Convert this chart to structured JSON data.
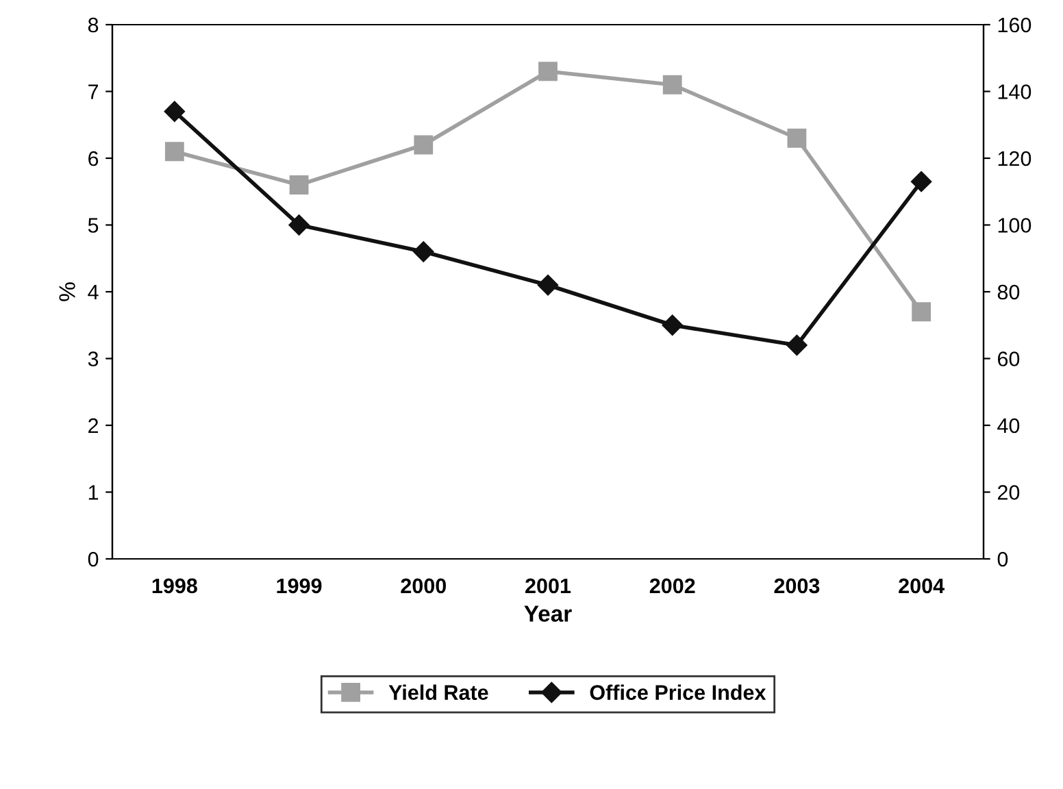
{
  "chart_data": {
    "type": "line",
    "xlabel": "Year",
    "ylabel": "%",
    "categories": [
      "1998",
      "1999",
      "2000",
      "2001",
      "2002",
      "2003",
      "2004"
    ],
    "series": [
      {
        "name": "Yield Rate",
        "color": "#a0a0a0",
        "marker": "square",
        "values": [
          6.1,
          5.6,
          6.2,
          7.3,
          7.1,
          6.3,
          3.7
        ]
      },
      {
        "name": "Office Price Index",
        "color": "#111111",
        "marker": "diamond",
        "axis": "y2",
        "values": [
          134,
          100,
          92,
          82,
          70,
          64,
          113
        ]
      }
    ],
    "ylim": [
      0,
      8
    ],
    "yticks": [
      0,
      1,
      2,
      3,
      4,
      5,
      6,
      7,
      8
    ],
    "y2lim": [
      0,
      160
    ],
    "y2ticks": [
      0,
      20,
      40,
      60,
      80,
      100,
      120,
      140,
      160
    ],
    "grid": false,
    "legend": "bottom"
  }
}
